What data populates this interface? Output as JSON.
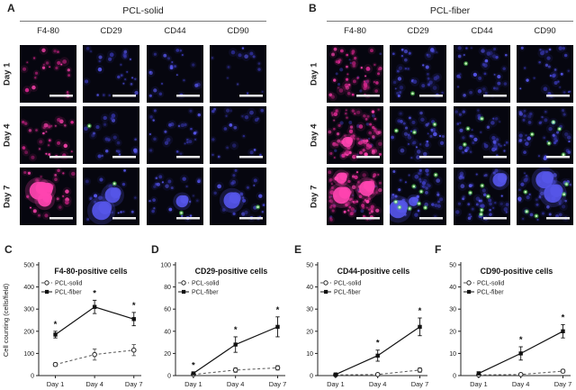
{
  "colors": {
    "tile_background": "#06060f",
    "magenta": "#d4268c",
    "magenta_bright": "#ff44b0",
    "nuclei_blue": "#3b3bb8",
    "nuclei_bright": "#5555e8",
    "green": "#58e858",
    "green_bright": "#ccffc0",
    "scale_bar": "#ebebeb",
    "axis": "#222222"
  },
  "panel_a": {
    "label": "A",
    "title": "PCL-solid",
    "columns": [
      "F4-80",
      "CD29",
      "CD44",
      "CD90"
    ],
    "rows": [
      "Day 1",
      "Day 4",
      "Day 7"
    ],
    "tiles": [
      [
        {
          "stain": "magenta",
          "dots": 22,
          "green": 0,
          "blobs": 0
        },
        {
          "stain": "blue",
          "dots": 26,
          "green": 0,
          "blobs": 0
        },
        {
          "stain": "blue",
          "dots": 22,
          "green": 0,
          "blobs": 0
        },
        {
          "stain": "blue",
          "dots": 14,
          "green": 0,
          "blobs": 0
        }
      ],
      [
        {
          "stain": "magenta",
          "dots": 30,
          "green": 0,
          "blobs": 0
        },
        {
          "stain": "blue",
          "dots": 22,
          "green": 1,
          "blobs": 0
        },
        {
          "stain": "blue",
          "dots": 26,
          "green": 0,
          "blobs": 0
        },
        {
          "stain": "blue",
          "dots": 24,
          "green": 0,
          "blobs": 0
        }
      ],
      [
        {
          "stain": "magenta",
          "dots": 26,
          "green": 0,
          "blobs": 3
        },
        {
          "stain": "blue",
          "dots": 24,
          "green": 1,
          "blobs": 2
        },
        {
          "stain": "blue",
          "dots": 26,
          "green": 1,
          "blobs": 1
        },
        {
          "stain": "blue",
          "dots": 26,
          "green": 1,
          "blobs": 1
        }
      ]
    ]
  },
  "panel_b": {
    "label": "B",
    "title": "PCL-fiber",
    "columns": [
      "F4-80",
      "CD29",
      "CD44",
      "CD90"
    ],
    "rows": [
      "Day 1",
      "Day 4",
      "Day 7"
    ],
    "tiles": [
      [
        {
          "stain": "magenta",
          "dots": 48,
          "green": 0,
          "blobs": 0
        },
        {
          "stain": "blue",
          "dots": 38,
          "green": 1,
          "blobs": 0
        },
        {
          "stain": "blue",
          "dots": 36,
          "green": 1,
          "blobs": 0
        },
        {
          "stain": "blue",
          "dots": 32,
          "green": 0,
          "blobs": 0
        }
      ],
      [
        {
          "stain": "magenta",
          "dots": 75,
          "green": 0,
          "blobs": 1
        },
        {
          "stain": "blue",
          "dots": 40,
          "green": 3,
          "blobs": 0
        },
        {
          "stain": "blue",
          "dots": 42,
          "green": 3,
          "blobs": 0
        },
        {
          "stain": "blue",
          "dots": 42,
          "green": 5,
          "blobs": 0
        }
      ],
      [
        {
          "stain": "magenta",
          "dots": 80,
          "green": 0,
          "blobs": 4
        },
        {
          "stain": "blue",
          "dots": 46,
          "green": 8,
          "blobs": 2
        },
        {
          "stain": "blue",
          "dots": 48,
          "green": 5,
          "blobs": 1
        },
        {
          "stain": "blue",
          "dots": 46,
          "green": 5,
          "blobs": 2
        }
      ]
    ]
  },
  "chart_data": [
    {
      "type": "line",
      "label": "C",
      "title": "F4-80-positive cells",
      "ylabel": "Cell counting (cells/field)",
      "categories": [
        "Day 1",
        "Day 4",
        "Day 7"
      ],
      "ylim": [
        0,
        500
      ],
      "ystep": 100,
      "series": [
        {
          "name": "PCL-solid",
          "marker": "open-circle",
          "line": "dashed",
          "values": [
            50,
            95,
            115
          ],
          "errors": [
            8,
            25,
            25
          ]
        },
        {
          "name": "PCL-fiber",
          "marker": "filled-square",
          "line": "solid",
          "values": [
            185,
            310,
            255
          ],
          "errors": [
            15,
            30,
            30
          ]
        }
      ],
      "significant_days": [
        0,
        1,
        2
      ]
    },
    {
      "type": "line",
      "label": "D",
      "title": "CD29-positive cells",
      "ylabel": "",
      "categories": [
        "Day 1",
        "Day 4",
        "Day 7"
      ],
      "ylim": [
        0,
        100
      ],
      "ystep": 20,
      "series": [
        {
          "name": "PCL-solid",
          "marker": "open-circle",
          "line": "dashed",
          "values": [
            1,
            5,
            7
          ],
          "errors": [
            1,
            2,
            2
          ]
        },
        {
          "name": "PCL-fiber",
          "marker": "filled-square",
          "line": "solid",
          "values": [
            2,
            28,
            44
          ],
          "errors": [
            1,
            7,
            9
          ]
        }
      ],
      "significant_days": [
        0,
        1,
        2
      ]
    },
    {
      "type": "line",
      "label": "E",
      "title": "CD44-positive cells",
      "ylabel": "",
      "categories": [
        "Day 1",
        "Day 4",
        "Day 7"
      ],
      "ylim": [
        0,
        50
      ],
      "ystep": 10,
      "series": [
        {
          "name": "PCL-solid",
          "marker": "open-circle",
          "line": "dashed",
          "values": [
            0.3,
            0.5,
            2.5
          ],
          "errors": [
            0.3,
            0.5,
            1
          ]
        },
        {
          "name": "PCL-fiber",
          "marker": "filled-square",
          "line": "solid",
          "values": [
            0.5,
            9,
            22
          ],
          "errors": [
            0.5,
            2.5,
            4
          ]
        }
      ],
      "significant_days": [
        1,
        2
      ]
    },
    {
      "type": "line",
      "label": "F",
      "title": "CD90-positive cells",
      "ylabel": "",
      "categories": [
        "Day 1",
        "Day 4",
        "Day 7"
      ],
      "ylim": [
        0,
        50
      ],
      "ystep": 10,
      "series": [
        {
          "name": "PCL-solid",
          "marker": "open-circle",
          "line": "dashed",
          "values": [
            0.3,
            0.5,
            2
          ],
          "errors": [
            0.3,
            0.5,
            0.8
          ]
        },
        {
          "name": "PCL-fiber",
          "marker": "filled-square",
          "line": "solid",
          "values": [
            1,
            10,
            20
          ],
          "errors": [
            0.7,
            3,
            3
          ]
        }
      ],
      "significant_days": [
        1,
        2
      ]
    }
  ]
}
